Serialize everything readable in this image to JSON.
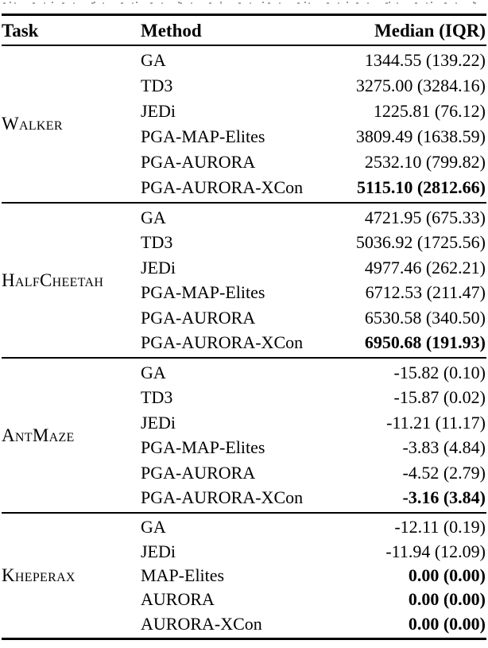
{
  "table": {
    "columns": {
      "task": "Task",
      "method": "Method",
      "value": "Median (IQR)"
    },
    "sections": [
      {
        "task": "Walker",
        "rows": [
          {
            "method": "GA",
            "value": "1344.55 (139.22)"
          },
          {
            "method": "TD3",
            "value": "3275.00 (3284.16)"
          },
          {
            "method": "JEDi",
            "value": "1225.81 (76.12)"
          },
          {
            "method": "PGA-MAP-Elites",
            "value": "3809.49 (1638.59)"
          },
          {
            "method": "PGA-AURORA",
            "value": "2532.10 (799.82)"
          },
          {
            "method": "PGA-AURORA-XCon",
            "value": "5115.10 (2812.66)",
            "bold": true
          }
        ]
      },
      {
        "task": "HalfCheetah",
        "rows": [
          {
            "method": "GA",
            "value": "4721.95 (675.33)"
          },
          {
            "method": "TD3",
            "value": "5036.92 (1725.56)"
          },
          {
            "method": "JEDi",
            "value": "4977.46 (262.21)"
          },
          {
            "method": "PGA-MAP-Elites",
            "value": "6712.53 (211.47)"
          },
          {
            "method": "PGA-AURORA",
            "value": "6530.58 (340.50)"
          },
          {
            "method": "PGA-AURORA-XCon",
            "value": "6950.68 (191.93)",
            "bold": true
          }
        ]
      },
      {
        "task": "AntMaze",
        "rows": [
          {
            "method": "GA",
            "value": "-15.82 (0.10)"
          },
          {
            "method": "TD3",
            "value": "-15.87 (0.02)"
          },
          {
            "method": "JEDi",
            "value": "-11.21 (11.17)"
          },
          {
            "method": "PGA-MAP-Elites",
            "value": "-3.83 (4.84)"
          },
          {
            "method": "PGA-AURORA",
            "value": "-4.52 (2.79)"
          },
          {
            "method": "PGA-AURORA-XCon",
            "value": "-3.16 (3.84)",
            "bold": true
          }
        ]
      },
      {
        "task": "Kheperax",
        "rows": [
          {
            "method": "GA",
            "value": "-12.11 (0.19)"
          },
          {
            "method": "JEDi",
            "value": "-11.94 (12.09)"
          },
          {
            "method": "MAP-Elites",
            "value": "0.00 (0.00)",
            "bold": true
          },
          {
            "method": "AURORA",
            "value": "0.00 (0.00)",
            "bold": true
          },
          {
            "method": "AURORA-XCon",
            "value": "0.00 (0.00)",
            "bold": true
          }
        ]
      }
    ]
  }
}
